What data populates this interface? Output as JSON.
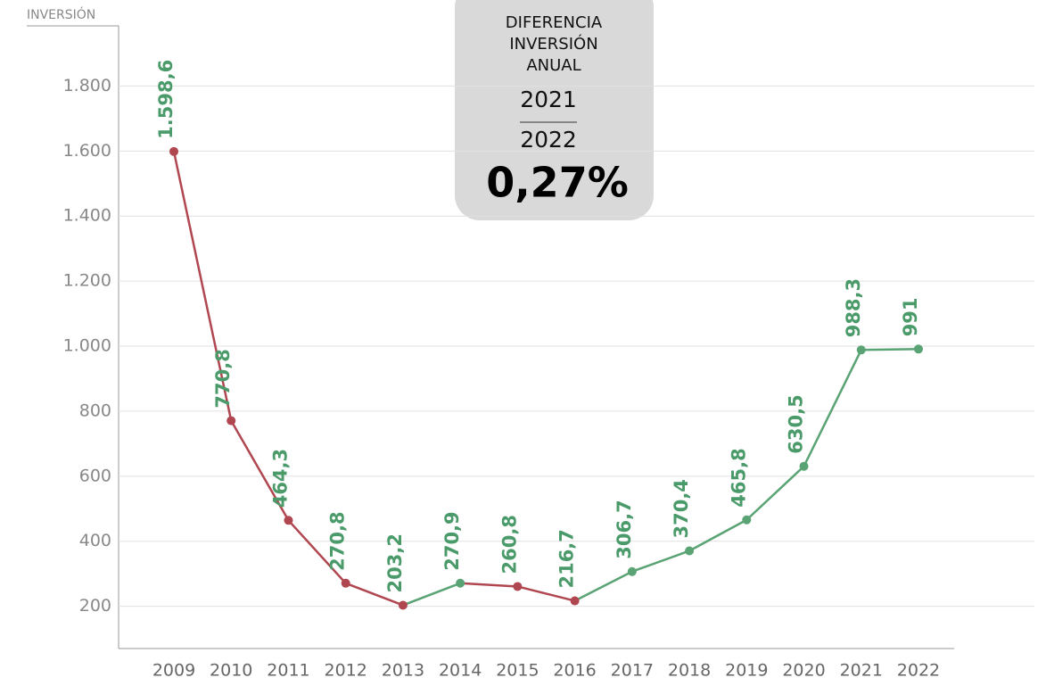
{
  "chart_data": {
    "type": "line",
    "y_axis_label": "INVERSIÓN",
    "annotation": {
      "lines": [
        "DIFERENCIA",
        "INVERSIÓN",
        "ANUAL"
      ],
      "from": "2021",
      "to": "2022",
      "value": "0,27%"
    },
    "categories": [
      "2009",
      "2010",
      "2011",
      "2012",
      "2013",
      "2014",
      "2015",
      "2016",
      "2017",
      "2018",
      "2019",
      "2020",
      "2021",
      "2022"
    ],
    "series": [
      {
        "values": [
          1598.6,
          770.8,
          464.3,
          270.8,
          203.2,
          270.9,
          260.8,
          216.7,
          306.7,
          370.4,
          465.8,
          630.5,
          988.3,
          991
        ],
        "value_labels": [
          "1.598,6",
          "770,8",
          "464,3",
          "270,8",
          "203,2",
          "270,9",
          "260,8",
          "216,7",
          "306,7",
          "370,4",
          "465,8",
          "630,5",
          "988,3",
          "991"
        ],
        "color": "#5aa374",
        "decrease_color": "#b0464f",
        "label_color": "#4a9a6a"
      }
    ],
    "ylim": [
      70,
      1985
    ],
    "yticks": [
      200,
      400,
      600,
      800,
      {
        "value": 1000,
        "label": "1.000"
      },
      {
        "value": 1200,
        "label": "1.200"
      },
      {
        "value": 1400,
        "label": "1.400"
      },
      {
        "value": 1600,
        "label": "1.600"
      },
      {
        "value": 1800,
        "label": "1.800"
      }
    ],
    "grid": true
  }
}
